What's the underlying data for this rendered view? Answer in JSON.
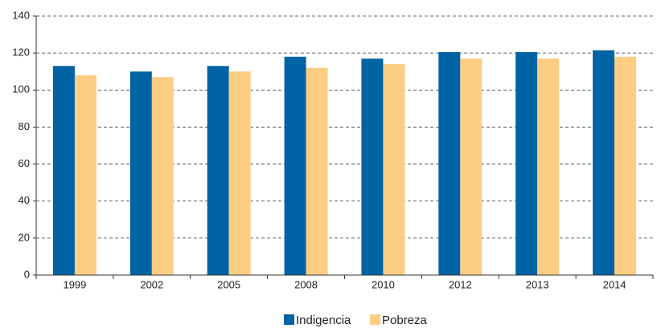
{
  "chart_data": {
    "type": "bar",
    "categories": [
      "1999",
      "2002",
      "2005",
      "2008",
      "2010",
      "2012",
      "2013",
      "2014"
    ],
    "series": [
      {
        "name": "Indigencia",
        "color": "#0063a3",
        "values": [
          113,
          110,
          113,
          118,
          117,
          120.5,
          120.5,
          121.5
        ]
      },
      {
        "name": "Pobreza",
        "color": "#fdcd84",
        "values": [
          108,
          107,
          110,
          112,
          114,
          117,
          117,
          118
        ]
      }
    ],
    "ylim": [
      0,
      140
    ],
    "yticks": [
      0,
      20,
      40,
      60,
      80,
      100,
      120,
      140
    ],
    "grid": true,
    "legend": "bottom"
  }
}
